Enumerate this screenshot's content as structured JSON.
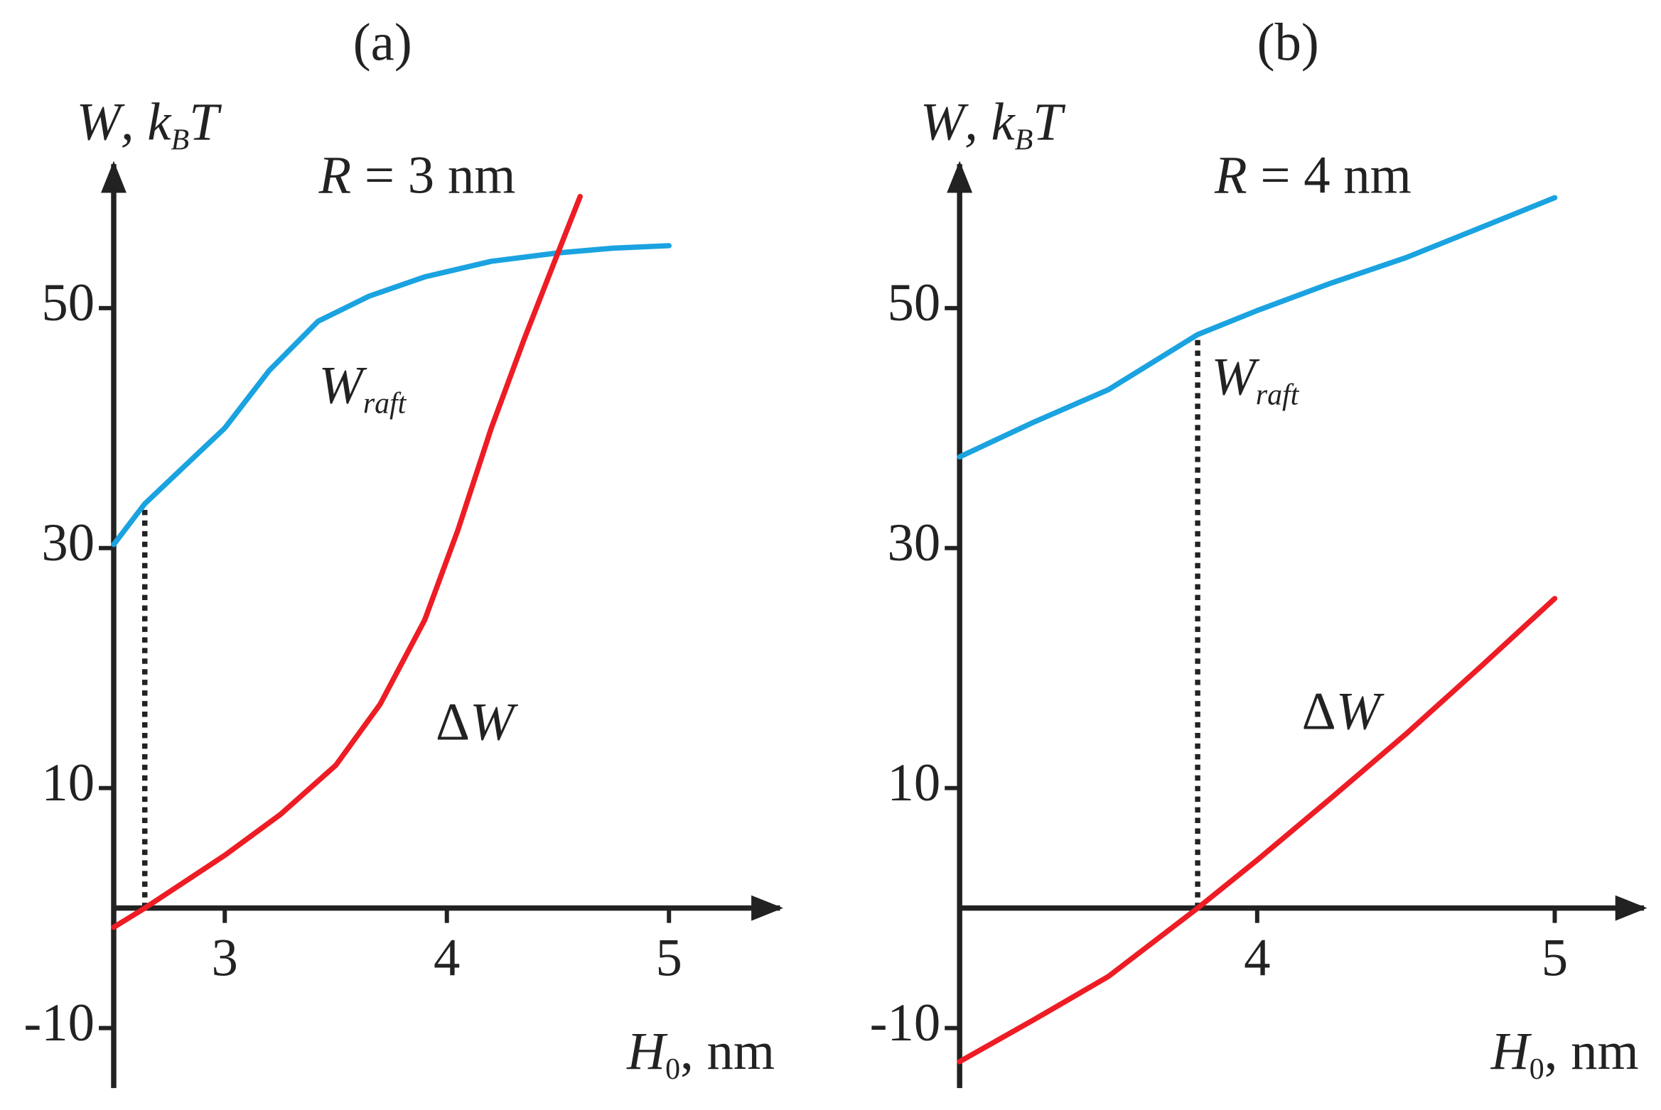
{
  "chart_data": [
    {
      "type": "line",
      "title": "(a)",
      "y_label": [
        "W",
        ", k",
        "B",
        "T"
      ],
      "x_label": [
        "H",
        "0",
        ", nm"
      ],
      "annotations": [
        [
          "R",
          " = 3 nm"
        ],
        [
          "W",
          "raft"
        ],
        [
          "Δ",
          "W"
        ]
      ],
      "xlim": [
        2.5,
        5.5
      ],
      "ylim": [
        -15,
        62
      ],
      "xticks": [
        3,
        4,
        5
      ],
      "yticks": [
        -10,
        10,
        30,
        50
      ],
      "series": [
        {
          "color": "#1aa3e0",
          "x": [
            2.5,
            2.64,
            3.0,
            3.2,
            3.42,
            3.65,
            3.9,
            4.2,
            4.5,
            4.75,
            5.0
          ],
          "values": [
            30.3,
            33.7,
            40.0,
            44.8,
            48.9,
            51.0,
            52.6,
            53.9,
            54.6,
            55.0,
            55.2
          ]
        },
        {
          "color": "#ee1c24",
          "x": [
            2.5,
            2.64,
            3.0,
            3.25,
            3.5,
            3.7,
            3.9,
            4.05,
            4.2,
            4.35,
            4.5,
            4.6
          ],
          "values": [
            -1.6,
            0,
            4.4,
            7.8,
            11.9,
            17.0,
            24.0,
            31.5,
            40.0,
            47.5,
            54.6,
            59.3
          ]
        }
      ],
      "drop_line": {
        "x": 2.64,
        "y": 33.7
      }
    },
    {
      "type": "line",
      "title": "(b)",
      "y_label": [
        "W",
        ", k",
        "B",
        "T"
      ],
      "x_label": [
        "H",
        "0",
        ", nm"
      ],
      "annotations": [
        [
          "R",
          " = 4 nm"
        ],
        [
          "W",
          "raft"
        ],
        [
          "Δ",
          "W"
        ]
      ],
      "xlim": [
        3.0,
        5.3
      ],
      "ylim": [
        -15,
        62
      ],
      "xticks": [
        4,
        5
      ],
      "yticks": [
        -10,
        10,
        30,
        50
      ],
      "series": [
        {
          "color": "#1aa3e0",
          "x": [
            3.0,
            3.25,
            3.5,
            3.8,
            4.0,
            4.25,
            4.5,
            4.75,
            5.0
          ],
          "values": [
            37.6,
            40.5,
            43.2,
            47.8,
            49.8,
            52.1,
            54.2,
            56.7,
            59.2
          ]
        },
        {
          "color": "#ee1c24",
          "x": [
            3.0,
            3.25,
            3.5,
            3.8,
            4.0,
            4.25,
            4.5,
            4.75,
            5.0
          ],
          "values": [
            -12.8,
            -9.3,
            -5.7,
            0,
            4.0,
            9.2,
            14.5,
            20.1,
            25.8
          ]
        }
      ],
      "drop_line": {
        "x": 3.8,
        "y": 47.8
      }
    }
  ]
}
